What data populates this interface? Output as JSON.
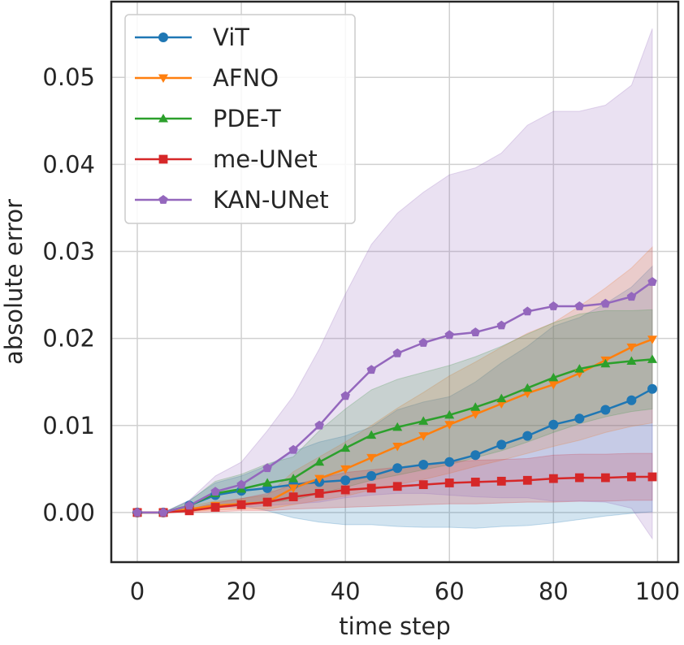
{
  "chart_data": {
    "type": "line",
    "xlabel": "time step",
    "ylabel": "absolute error",
    "xlim": [
      -5,
      104
    ],
    "ylim": [
      -0.0057,
      0.0587
    ],
    "xticks": [
      0,
      20,
      40,
      60,
      80,
      100
    ],
    "xtick_labels": [
      "0",
      "20",
      "40",
      "60",
      "80",
      "100"
    ],
    "yticks": [
      0.0,
      0.01,
      0.02,
      0.03,
      0.04,
      0.05
    ],
    "ytick_labels": [
      "0.00",
      "0.01",
      "0.02",
      "0.03",
      "0.04",
      "0.05"
    ],
    "grid": true,
    "legend_position": "top-left",
    "series": [
      {
        "name": "ViT",
        "color": "#1f77b4",
        "marker": "circle",
        "x": [
          0,
          5,
          10,
          15,
          20,
          25,
          30,
          35,
          40,
          45,
          50,
          55,
          60,
          65,
          70,
          75,
          80,
          85,
          90,
          95,
          99
        ],
        "values": [
          0,
          0,
          0.0008,
          0.002,
          0.0025,
          0.0028,
          0.0032,
          0.0035,
          0.0037,
          0.0042,
          0.0051,
          0.0055,
          0.0058,
          0.0066,
          0.0078,
          0.0088,
          0.0101,
          0.0108,
          0.0118,
          0.0129,
          0.0142
        ],
        "lower": [
          0,
          0,
          0.0002,
          0.0006,
          0.0008,
          0.0002,
          -0.0006,
          -0.0011,
          -0.0014,
          -0.0014,
          -0.0016,
          -0.0017,
          -0.0017,
          -0.0018,
          -0.0016,
          -0.0015,
          -0.0012,
          -0.0008,
          -0.0004,
          -0.0001,
          0.0001
        ],
        "upper": [
          0,
          0,
          0.0014,
          0.0034,
          0.0042,
          0.0054,
          0.007,
          0.0081,
          0.0088,
          0.0098,
          0.0118,
          0.0127,
          0.0133,
          0.015,
          0.0172,
          0.0191,
          0.0214,
          0.0224,
          0.024,
          0.0259,
          0.0283
        ]
      },
      {
        "name": "AFNO",
        "color": "#ff7f0e",
        "marker": "triangle-down",
        "x": [
          0,
          5,
          10,
          15,
          20,
          25,
          30,
          35,
          40,
          45,
          50,
          55,
          60,
          65,
          70,
          75,
          80,
          85,
          90,
          95,
          99
        ],
        "values": [
          0,
          0,
          0.0004,
          0.0008,
          0.001,
          0.0012,
          0.0028,
          0.0039,
          0.005,
          0.0063,
          0.0076,
          0.0088,
          0.0101,
          0.0113,
          0.0125,
          0.0137,
          0.0147,
          0.016,
          0.0175,
          0.019,
          0.0199
        ],
        "lower": [
          0,
          0,
          0.0001,
          0.0003,
          0.0004,
          0.0004,
          0.0009,
          0.0014,
          0.0019,
          0.0026,
          0.0032,
          0.0038,
          0.0045,
          0.0053,
          0.006,
          0.0068,
          0.0076,
          0.0083,
          0.0092,
          0.0099,
          0.0103
        ],
        "upper": [
          0,
          0,
          0.0007,
          0.0013,
          0.0016,
          0.002,
          0.0047,
          0.0064,
          0.0081,
          0.01,
          0.012,
          0.0138,
          0.0157,
          0.0173,
          0.019,
          0.0206,
          0.0218,
          0.0237,
          0.0258,
          0.0281,
          0.0305
        ]
      },
      {
        "name": "PDE-T",
        "color": "#2ca02c",
        "marker": "triangle-up",
        "x": [
          0,
          5,
          10,
          15,
          20,
          25,
          30,
          35,
          40,
          45,
          50,
          55,
          60,
          65,
          70,
          75,
          80,
          85,
          90,
          95,
          99
        ],
        "values": [
          0,
          0,
          0.0008,
          0.0022,
          0.0027,
          0.0034,
          0.0039,
          0.0058,
          0.0074,
          0.0089,
          0.0098,
          0.0105,
          0.0112,
          0.0121,
          0.0131,
          0.0143,
          0.0155,
          0.0165,
          0.0171,
          0.0174,
          0.0176
        ],
        "lower": [
          0,
          0,
          0.0003,
          0.0008,
          0.001,
          0.0012,
          0.0014,
          0.0022,
          0.0029,
          0.0037,
          0.0043,
          0.0049,
          0.0055,
          0.0063,
          0.0071,
          0.0081,
          0.0092,
          0.0102,
          0.011,
          0.0116,
          0.0119
        ],
        "upper": [
          0,
          0,
          0.0013,
          0.0036,
          0.0044,
          0.0056,
          0.0064,
          0.0094,
          0.0119,
          0.0141,
          0.0153,
          0.0161,
          0.0169,
          0.0179,
          0.0191,
          0.0205,
          0.0218,
          0.0228,
          0.0232,
          0.0232,
          0.0233
        ]
      },
      {
        "name": "me-UNet",
        "color": "#d62728",
        "marker": "square",
        "x": [
          0,
          5,
          10,
          15,
          20,
          25,
          30,
          35,
          40,
          45,
          50,
          55,
          60,
          65,
          70,
          75,
          80,
          85,
          90,
          95,
          99
        ],
        "values": [
          0,
          0,
          0.0002,
          0.0006,
          0.0009,
          0.0012,
          0.0018,
          0.0022,
          0.0026,
          0.0028,
          0.003,
          0.0032,
          0.0034,
          0.0035,
          0.0036,
          0.0037,
          0.0039,
          0.004,
          0.004,
          0.0041,
          0.0041
        ],
        "lower": [
          0,
          0,
          0,
          0.0001,
          0.0002,
          0.0002,
          0.0004,
          0.0005,
          0.0006,
          0.0007,
          0.0008,
          0.0009,
          0.001,
          0.001,
          0.0011,
          0.0012,
          0.0012,
          0.0013,
          0.0013,
          0.0014,
          0.0014
        ],
        "upper": [
          0,
          0,
          0.0004,
          0.0011,
          0.0016,
          0.0022,
          0.0032,
          0.0039,
          0.0046,
          0.0049,
          0.0052,
          0.0055,
          0.0058,
          0.006,
          0.0061,
          0.0062,
          0.0066,
          0.0067,
          0.0067,
          0.0068,
          0.0068
        ]
      },
      {
        "name": "KAN-UNet",
        "color": "#9467bd",
        "marker": "pentagon",
        "x": [
          0,
          5,
          10,
          15,
          20,
          25,
          30,
          35,
          40,
          45,
          50,
          55,
          60,
          65,
          70,
          75,
          80,
          85,
          90,
          95,
          99
        ],
        "values": [
          0,
          0,
          0.0008,
          0.0024,
          0.0032,
          0.0051,
          0.0072,
          0.01,
          0.0134,
          0.0164,
          0.0183,
          0.0195,
          0.0204,
          0.0207,
          0.0215,
          0.0231,
          0.0237,
          0.0237,
          0.024,
          0.0248,
          0.0265
        ],
        "lower": [
          0,
          0,
          0.0002,
          0.0006,
          0.0006,
          0.0008,
          0.001,
          0.0012,
          0.0017,
          0.002,
          0.0022,
          0.0022,
          0.002,
          0.0018,
          0.0017,
          0.0017,
          0.0013,
          0.0013,
          0.0012,
          0.0005,
          -0.003
        ],
        "upper": [
          0,
          0,
          0.0014,
          0.0042,
          0.0058,
          0.0094,
          0.0134,
          0.0188,
          0.0251,
          0.0308,
          0.0344,
          0.0368,
          0.0388,
          0.0396,
          0.0413,
          0.0445,
          0.0461,
          0.0461,
          0.0468,
          0.0491,
          0.0556
        ]
      }
    ]
  }
}
